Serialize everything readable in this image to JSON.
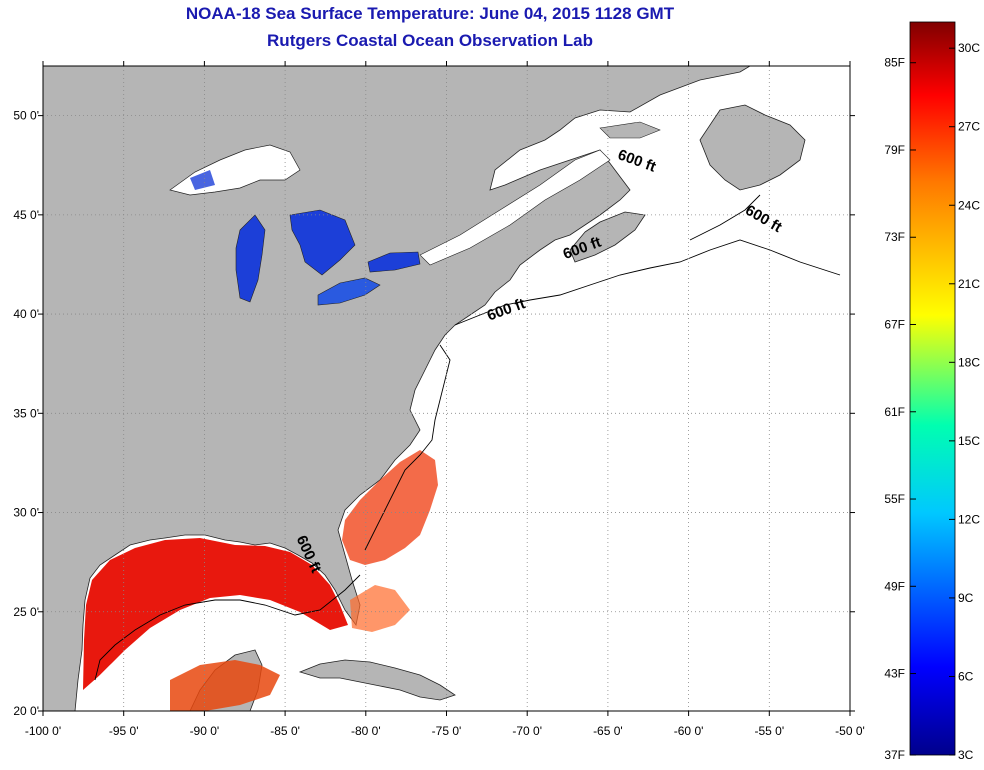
{
  "title": "NOAA-18 Sea Surface Temperature:  June 04, 2015 1128 GMT",
  "subtitle": "Rutgers Coastal Ocean Observation Lab",
  "map": {
    "lon_range": [
      -100,
      -50
    ],
    "lat_range": [
      20,
      52.5
    ],
    "lon_ticks": [
      "-100 0'",
      "-95 0'",
      "-90 0'",
      "-85 0'",
      "-80 0'",
      "-75 0'",
      "-70 0'",
      "-65 0'",
      "-60 0'",
      "-55 0'",
      "-50 0'"
    ],
    "lat_ticks": [
      "50 0'",
      "45 0'",
      "40 0'",
      "35 0'",
      "30 0'",
      "25 0'",
      "20 0'"
    ],
    "contour_labels": [
      {
        "text": "600 ft",
        "lon": -63.3,
        "lat": 47.5
      },
      {
        "text": "600 ft",
        "lon": -55.5,
        "lat": 44.6
      },
      {
        "text": "600 ft",
        "lon": -66.5,
        "lat": 43.1
      },
      {
        "text": "600 ft",
        "lon": -71.2,
        "lat": 40.0
      },
      {
        "text": "600 ft",
        "lon": -83.8,
        "lat": 27.8
      }
    ],
    "colors": {
      "land": "#b5b5b5",
      "ocean": "#ffffff",
      "gulf_sst": "#e8180e",
      "lake_sst": "#1c3fd8",
      "grid": "#888888"
    }
  },
  "colorbar": {
    "fahrenheit": [
      "85F",
      "79F",
      "73F",
      "67F",
      "61F",
      "55F",
      "49F",
      "43F",
      "37F"
    ],
    "celsius": [
      "30C",
      "27C",
      "24C",
      "21C",
      "18C",
      "15C",
      "12C",
      "9C",
      "6C",
      "3C"
    ],
    "range_c": [
      3,
      31
    ]
  }
}
